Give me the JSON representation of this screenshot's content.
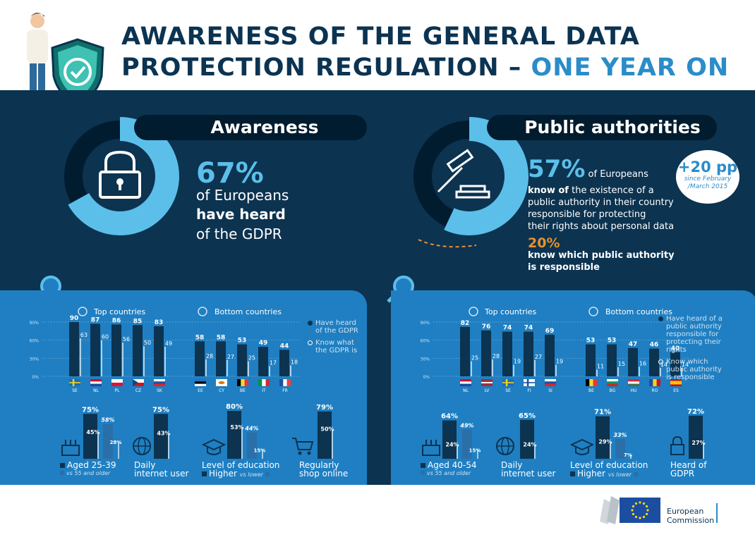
{
  "title": {
    "line1": "AWARENESS OF THE GENERAL DATA",
    "line2": "PROTECTION REGULATION –",
    "highlight": "ONE YEAR ON"
  },
  "awareness": {
    "heading": "Awareness",
    "pct": "67%",
    "text1": "of Europeans",
    "text2": "have heard",
    "text3": "of the GDPR",
    "legend1": "Have heard of the GDPR",
    "legend2": "Know what the GDPR is",
    "top_label": "Top countries",
    "bottom_label": "Bottom countries",
    "cap_aged": "Aged 25-39",
    "cap_aged_sub": "vs 55 and older",
    "cap_internet": "Daily internet user",
    "cap_edu": "Level of education",
    "cap_edu_sub_a": "Higher",
    "cap_edu_sub_b": "vs lower",
    "cap_shop": "Regularly shop online"
  },
  "public": {
    "heading": "Public authorities",
    "pct": "57%",
    "text1": "of Europeans",
    "text2": "know of",
    "text3": "the existence of a",
    "text4": "public authority in their country",
    "text5": "responsible for protecting",
    "text6": "their rights about personal data",
    "pct2": "20%",
    "text7": "know which public authority",
    "text8": "is responsible",
    "badge": "+20 pp",
    "badge_sub1": "since February",
    "badge_sub2": "/March 2015",
    "legend1": "Have heard of a public authority responsible for protecting their rights",
    "legend2": "Know which public authority is responsible",
    "top_label": "Top countries",
    "bottom_label": "Bottom countries",
    "cap_aged": "Aged 40-54",
    "cap_aged_sub": "vs 55 and older",
    "cap_internet": "Daily internet user",
    "cap_edu": "Level of education",
    "cap_edu_sub_a": "Higher",
    "cap_edu_sub_b": "vs lower",
    "cap_heard": "Heard of GDPR"
  },
  "footer": {
    "ec1": "European",
    "ec2": "Commission"
  },
  "colors": {
    "navy": "#0c3350",
    "dark": "#021c2f",
    "light_blue": "#5bbfea",
    "panel": "#1f7fc2",
    "orange": "#e8912d"
  },
  "chart_data": [
    {
      "type": "bar",
      "name": "awareness-countries",
      "yticks": [
        "90%",
        "60%",
        "30%",
        "0%"
      ],
      "ylim": [
        0,
        90
      ],
      "top": {
        "categories": [
          "SE",
          "NL",
          "PL",
          "CZ",
          "SK"
        ],
        "series": [
          {
            "values": [
              90,
              87,
              86,
              85,
              83
            ]
          },
          {
            "values": [
              63,
              60,
              56,
              50,
              49
            ]
          }
        ]
      },
      "bottom": {
        "categories": [
          "EE",
          "CY",
          "BE",
          "IT",
          "FR"
        ],
        "series": [
          {
            "values": [
              58,
              58,
              53,
              49,
              44
            ]
          },
          {
            "values": [
              28,
              27,
              25,
              17,
              18
            ]
          }
        ]
      }
    },
    {
      "type": "bar",
      "name": "public-authority-countries",
      "yticks": [
        "90%",
        "60%",
        "30%",
        "0%"
      ],
      "ylim": [
        0,
        90
      ],
      "top": {
        "categories": [
          "NL",
          "LV",
          "SE",
          "FI",
          "SI"
        ],
        "series": [
          {
            "values": [
              82,
              76,
              74,
              74,
              69
            ]
          },
          {
            "values": [
              25,
              28,
              19,
              27,
              19
            ]
          }
        ]
      },
      "bottom": {
        "categories": [
          "BE",
          "BG",
          "HU",
          "RO",
          "ES"
        ],
        "series": [
          {
            "values": [
              53,
              53,
              47,
              46,
              40
            ]
          },
          {
            "values": [
              11,
              15,
              16,
              14,
              14
            ]
          }
        ]
      }
    },
    {
      "type": "bar",
      "name": "awareness-demographics",
      "groups": [
        {
          "bars": [
            {
              "value": 75,
              "label": "75%"
            },
            {
              "value": 45,
              "label": "45%"
            },
            {
              "value": 58,
              "label": "58%"
            },
            {
              "value": 28,
              "label": "28%"
            }
          ]
        },
        {
          "bars": [
            {
              "value": 75,
              "label": "75%"
            },
            {
              "value": 43,
              "label": "43%"
            }
          ]
        },
        {
          "bars": [
            {
              "value": 80,
              "label": "80%"
            },
            {
              "value": 53,
              "label": "53%"
            },
            {
              "value": 44,
              "label": "44%"
            },
            {
              "value": 15,
              "label": "15%"
            }
          ]
        },
        {
          "bars": [
            {
              "value": 79,
              "label": "79%"
            },
            {
              "value": 50,
              "label": "50%"
            }
          ]
        }
      ]
    },
    {
      "type": "bar",
      "name": "public-demographics",
      "groups": [
        {
          "bars": [
            {
              "value": 64,
              "label": "64%"
            },
            {
              "value": 24,
              "label": "24%"
            },
            {
              "value": 49,
              "label": "49%"
            },
            {
              "value": 15,
              "label": "15%"
            }
          ]
        },
        {
          "bars": [
            {
              "value": 65,
              "label": "65%"
            },
            {
              "value": 24,
              "label": "24%"
            }
          ]
        },
        {
          "bars": [
            {
              "value": 71,
              "label": "71%"
            },
            {
              "value": 29,
              "label": "29%"
            },
            {
              "value": 33,
              "label": "33%"
            },
            {
              "value": 7,
              "label": "7%"
            }
          ]
        },
        {
          "bars": [
            {
              "value": 72,
              "label": "72%"
            },
            {
              "value": 27,
              "label": "27%"
            }
          ]
        }
      ]
    }
  ]
}
